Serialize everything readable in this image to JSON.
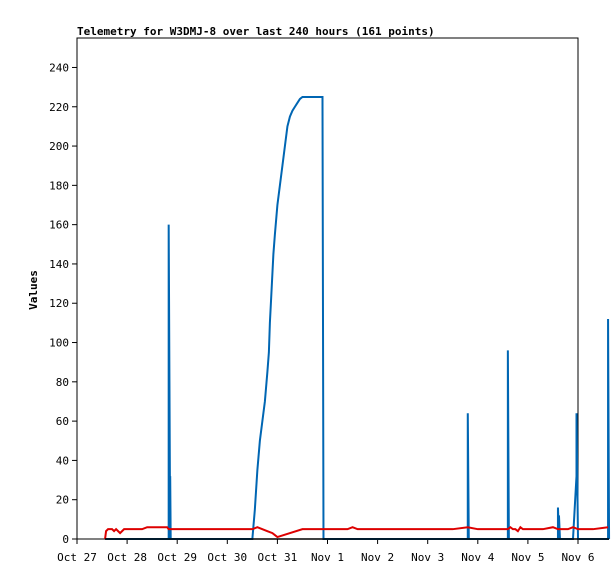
{
  "chart_data": {
    "type": "line",
    "title": "Telemetry for W3DMJ-8 over last 240 hours (161 points)",
    "ylabel": "Values",
    "xlabel": "",
    "ylim": [
      0,
      255
    ],
    "y_ticks": [
      0,
      20,
      40,
      60,
      80,
      100,
      120,
      140,
      160,
      180,
      200,
      220,
      240
    ],
    "x_range_days": [
      "Oct 27",
      "Nov 6"
    ],
    "x_ticks": [
      "Oct 27",
      "Oct 28",
      "Oct 29",
      "Oct 30",
      "Oct 31",
      "Nov 1",
      "Nov 2",
      "Nov 3",
      "Nov 4",
      "Nov 5",
      "Nov 6"
    ],
    "grid": false,
    "series": [
      {
        "color": "#0066b3",
        "x": [
          0.56,
          0.56,
          0.61,
          0.61,
          0.63,
          0.63,
          0.67,
          0.67,
          0.7,
          0.7,
          0.74,
          0.74,
          0.8,
          0.8,
          0.86,
          0.86,
          0.88,
          0.88,
          1.83,
          1.83,
          1.86,
          1.86,
          1.87,
          1.88,
          1.88,
          1.9,
          1.9,
          2.0,
          2.5,
          3.0,
          3.5,
          3.55,
          3.6,
          3.65,
          3.7,
          3.75,
          3.8,
          3.83,
          3.85,
          3.87,
          3.88,
          3.9,
          3.92,
          3.95,
          4.0,
          4.05,
          4.1,
          4.15,
          4.2,
          4.25,
          4.3,
          4.35,
          4.4,
          4.45,
          4.5,
          4.55,
          4.6,
          4.65,
          4.7,
          4.75,
          4.8,
          4.85,
          4.88,
          4.9,
          4.92,
          4.94,
          4.95,
          4.97,
          5.0,
          5.5,
          6.0,
          6.5,
          7.0,
          7.5,
          7.7,
          7.8,
          7.8,
          7.82,
          7.82,
          8.0,
          8.3,
          8.6,
          8.6,
          8.62,
          8.62,
          9.0,
          9.3,
          9.6,
          9.6,
          9.62,
          9.62,
          9.64,
          9.64,
          9.9,
          9.97,
          9.97,
          10.0,
          10.0,
          10.3,
          10.6,
          10.6,
          10.62,
          10.62
        ],
        "y": [
          0,
          0,
          0,
          0,
          0,
          0,
          0,
          0,
          0,
          0,
          0,
          0,
          0,
          0,
          0,
          0,
          0,
          0,
          0,
          160,
          0,
          32,
          0,
          0,
          0,
          0,
          0,
          0,
          0,
          0,
          0,
          15,
          35,
          50,
          60,
          70,
          85,
          95,
          110,
          120,
          125,
          135,
          145,
          155,
          170,
          180,
          190,
          200,
          210,
          215,
          218,
          220,
          222,
          224,
          225,
          225,
          225,
          225,
          225,
          225,
          225,
          225,
          225,
          225,
          0,
          0,
          0,
          0,
          0,
          0,
          0,
          0,
          0,
          0,
          0,
          0,
          64,
          0,
          0,
          0,
          0,
          0,
          96,
          0,
          0,
          0,
          0,
          0,
          16,
          0,
          12,
          0,
          0,
          0,
          32,
          64,
          0,
          0,
          0,
          0,
          112,
          0,
          0
        ]
      },
      {
        "color": "#dd0000",
        "x": [
          0.56,
          0.58,
          0.62,
          0.66,
          0.7,
          0.74,
          0.78,
          0.82,
          0.86,
          0.9,
          0.94,
          0.98,
          1.02,
          1.06,
          1.1,
          1.2,
          1.3,
          1.4,
          1.5,
          1.6,
          1.7,
          1.8,
          1.83,
          1.86,
          1.9,
          2.0,
          2.5,
          3.0,
          3.5,
          3.6,
          3.7,
          3.8,
          3.9,
          3.95,
          4.0,
          4.5,
          5.0,
          5.4,
          5.5,
          5.6,
          6.0,
          6.5,
          7.0,
          7.5,
          7.8,
          8.0,
          8.3,
          8.6,
          8.65,
          8.7,
          8.75,
          8.8,
          8.85,
          8.9,
          9.0,
          9.3,
          9.5,
          9.6,
          9.7,
          9.8,
          9.9,
          10.0,
          10.3,
          10.6
        ],
        "y": [
          0,
          4,
          5,
          5,
          5,
          4,
          5,
          4,
          3,
          4,
          5,
          5,
          5,
          5,
          5,
          5,
          5,
          6,
          6,
          6,
          6,
          6,
          5,
          5,
          5,
          5,
          5,
          5,
          5,
          6,
          5,
          4,
          3,
          2,
          1,
          5,
          5,
          5,
          6,
          5,
          5,
          5,
          5,
          5,
          6,
          5,
          5,
          5,
          6,
          5,
          5,
          4,
          6,
          5,
          5,
          5,
          6,
          5,
          5,
          5,
          6,
          5,
          5,
          6
        ]
      },
      {
        "color": "#000000",
        "x": [
          0.56,
          10.62
        ],
        "y": [
          0,
          0
        ]
      }
    ]
  }
}
